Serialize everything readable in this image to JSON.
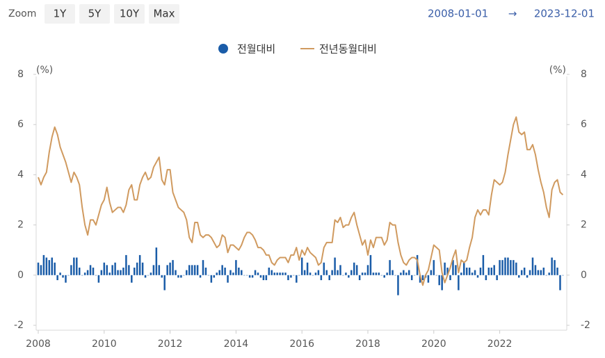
{
  "controls": {
    "zoom_label": "Zoom",
    "buttons": [
      "1Y",
      "5Y",
      "10Y",
      "Max"
    ],
    "range": {
      "from": "2008-01-01",
      "arrow": "→",
      "to": "2023-12-01"
    }
  },
  "chart_data": {
    "type": "bar+line",
    "x": [
      "2008-01",
      "2008-02",
      "2008-03",
      "2008-04",
      "2008-05",
      "2008-06",
      "2008-07",
      "2008-08",
      "2008-09",
      "2008-10",
      "2008-11",
      "2008-12",
      "2009-01",
      "2009-02",
      "2009-03",
      "2009-04",
      "2009-05",
      "2009-06",
      "2009-07",
      "2009-08",
      "2009-09",
      "2009-10",
      "2009-11",
      "2009-12",
      "2010-01",
      "2010-02",
      "2010-03",
      "2010-04",
      "2010-05",
      "2010-06",
      "2010-07",
      "2010-08",
      "2010-09",
      "2010-10",
      "2010-11",
      "2010-12",
      "2011-01",
      "2011-02",
      "2011-03",
      "2011-04",
      "2011-05",
      "2011-06",
      "2011-07",
      "2011-08",
      "2011-09",
      "2011-10",
      "2011-11",
      "2011-12",
      "2012-01",
      "2012-02",
      "2012-03",
      "2012-04",
      "2012-05",
      "2012-06",
      "2012-07",
      "2012-08",
      "2012-09",
      "2012-10",
      "2012-11",
      "2012-12",
      "2013-01",
      "2013-02",
      "2013-03",
      "2013-04",
      "2013-05",
      "2013-06",
      "2013-07",
      "2013-08",
      "2013-09",
      "2013-10",
      "2013-11",
      "2013-12",
      "2014-01",
      "2014-02",
      "2014-03",
      "2014-04",
      "2014-05",
      "2014-06",
      "2014-07",
      "2014-08",
      "2014-09",
      "2014-10",
      "2014-11",
      "2014-12",
      "2015-01",
      "2015-02",
      "2015-03",
      "2015-04",
      "2015-05",
      "2015-06",
      "2015-07",
      "2015-08",
      "2015-09",
      "2015-10",
      "2015-11",
      "2015-12",
      "2016-01",
      "2016-02",
      "2016-03",
      "2016-04",
      "2016-05",
      "2016-06",
      "2016-07",
      "2016-08",
      "2016-09",
      "2016-10",
      "2016-11",
      "2016-12",
      "2017-01",
      "2017-02",
      "2017-03",
      "2017-04",
      "2017-05",
      "2017-06",
      "2017-07",
      "2017-08",
      "2017-09",
      "2017-10",
      "2017-11",
      "2017-12",
      "2018-01",
      "2018-02",
      "2018-03",
      "2018-04",
      "2018-05",
      "2018-06",
      "2018-07",
      "2018-08",
      "2018-09",
      "2018-10",
      "2018-11",
      "2018-12",
      "2019-01",
      "2019-02",
      "2019-03",
      "2019-04",
      "2019-05",
      "2019-06",
      "2019-07",
      "2019-08",
      "2019-09",
      "2019-10",
      "2019-11",
      "2019-12",
      "2020-01",
      "2020-02",
      "2020-03",
      "2020-04",
      "2020-05",
      "2020-06",
      "2020-07",
      "2020-08",
      "2020-09",
      "2020-10",
      "2020-11",
      "2020-12",
      "2021-01",
      "2021-02",
      "2021-03",
      "2021-04",
      "2021-05",
      "2021-06",
      "2021-07",
      "2021-08",
      "2021-09",
      "2021-10",
      "2021-11",
      "2021-12",
      "2022-01",
      "2022-02",
      "2022-03",
      "2022-04",
      "2022-05",
      "2022-06",
      "2022-07",
      "2022-08",
      "2022-09",
      "2022-10",
      "2022-11",
      "2022-12",
      "2023-01",
      "2023-02",
      "2023-03",
      "2023-04",
      "2023-05",
      "2023-06",
      "2023-07",
      "2023-08",
      "2023-09",
      "2023-10",
      "2023-11",
      "2023-12"
    ],
    "xticks": [
      {
        "value": "2008-01",
        "label": "2008"
      },
      {
        "value": "2010-01",
        "label": "2010"
      },
      {
        "value": "2012-01",
        "label": "2012"
      },
      {
        "value": "2014-01",
        "label": "2014"
      },
      {
        "value": "2016-01",
        "label": "2016"
      },
      {
        "value": "2018-01",
        "label": "2018"
      },
      {
        "value": "2020-01",
        "label": "2020"
      },
      {
        "value": "2022-01",
        "label": "2022"
      }
    ],
    "y_unit": "(%)",
    "y2_unit": "(%)",
    "ylim": [
      -2,
      8
    ],
    "yticks": [
      -2,
      0,
      2,
      4,
      6,
      8
    ],
    "y2lim": [
      -2,
      8
    ],
    "y2ticks": [
      -2,
      0,
      2,
      4,
      6,
      8
    ],
    "grid": false,
    "legend": "top",
    "series": [
      {
        "name": "전월대비",
        "type": "bar",
        "color": "#1a5ca8",
        "values": [
          0.5,
          0.4,
          0.8,
          0.7,
          0.6,
          0.7,
          0.5,
          -0.2,
          0.1,
          -0.1,
          -0.3,
          0.0,
          0.4,
          0.7,
          0.7,
          0.3,
          0.0,
          0.1,
          0.2,
          0.4,
          0.3,
          0.0,
          -0.3,
          0.2,
          0.5,
          0.4,
          0.1,
          0.4,
          0.5,
          0.2,
          0.2,
          0.3,
          0.8,
          0.4,
          -0.3,
          0.3,
          0.5,
          0.8,
          0.5,
          -0.1,
          0.0,
          0.1,
          0.4,
          1.1,
          0.4,
          -0.1,
          -0.6,
          0.4,
          0.5,
          0.6,
          0.2,
          -0.1,
          -0.1,
          0.0,
          0.2,
          0.4,
          0.4,
          0.4,
          0.4,
          -0.1,
          0.6,
          0.3,
          0.0,
          -0.3,
          -0.1,
          0.1,
          0.2,
          0.4,
          0.3,
          -0.3,
          0.2,
          0.1,
          0.6,
          0.3,
          0.2,
          0.0,
          0.0,
          -0.1,
          -0.1,
          0.2,
          0.1,
          -0.1,
          -0.2,
          -0.2,
          0.3,
          0.2,
          0.1,
          0.1,
          0.1,
          0.1,
          0.1,
          -0.2,
          -0.1,
          0.0,
          -0.3,
          0.0,
          0.7,
          0.2,
          0.5,
          0.1,
          0.0,
          0.1,
          0.2,
          -0.2,
          0.5,
          0.2,
          -0.2,
          0.2,
          0.7,
          0.2,
          0.4,
          0.0,
          0.1,
          -0.1,
          0.2,
          0.5,
          0.4,
          -0.2,
          0.1,
          0.1,
          0.4,
          0.8,
          0.1,
          0.1,
          0.1,
          0.0,
          -0.1,
          0.1,
          0.6,
          0.2,
          0.0,
          -0.8,
          0.1,
          0.2,
          0.1,
          0.2,
          -0.2,
          0.0,
          0.8,
          -0.3,
          -0.2,
          -0.1,
          -0.3,
          0.2,
          0.6,
          0.0,
          -0.4,
          -0.6,
          0.5,
          0.3,
          -0.2,
          0.6,
          0.4,
          -0.6,
          0.1,
          0.5,
          0.3,
          0.3,
          0.1,
          0.2,
          -0.1,
          0.3,
          0.8,
          -0.2,
          0.3,
          0.3,
          0.4,
          -0.2,
          0.6,
          0.6,
          0.7,
          0.7,
          0.6,
          0.6,
          0.5,
          -0.1,
          0.2,
          0.3,
          -0.1,
          0.2,
          0.7,
          0.4,
          0.2,
          0.2,
          0.3,
          0.0,
          0.1,
          0.7,
          0.6,
          0.3,
          -0.6,
          0.0
        ]
      },
      {
        "name": "전년동월대비",
        "type": "line",
        "axis": "y2",
        "color": "#d09a5f",
        "values": [
          3.9,
          3.6,
          3.9,
          4.1,
          4.9,
          5.5,
          5.9,
          5.6,
          5.1,
          4.8,
          4.5,
          4.1,
          3.7,
          4.1,
          3.9,
          3.6,
          2.7,
          2.0,
          1.6,
          2.2,
          2.2,
          2.0,
          2.4,
          2.8,
          3.0,
          3.5,
          2.9,
          2.5,
          2.6,
          2.7,
          2.7,
          2.5,
          2.8,
          3.4,
          3.6,
          3.0,
          3.0,
          3.6,
          3.9,
          4.1,
          3.8,
          3.9,
          4.3,
          4.5,
          4.7,
          3.8,
          3.6,
          4.2,
          4.2,
          3.3,
          3.0,
          2.7,
          2.6,
          2.5,
          2.2,
          1.5,
          1.3,
          2.1,
          2.1,
          1.6,
          1.5,
          1.6,
          1.6,
          1.5,
          1.3,
          1.1,
          1.2,
          1.6,
          1.5,
          0.9,
          1.2,
          1.2,
          1.1,
          1.0,
          1.2,
          1.5,
          1.7,
          1.7,
          1.6,
          1.4,
          1.1,
          1.1,
          1.0,
          0.8,
          0.8,
          0.5,
          0.4,
          0.6,
          0.7,
          0.7,
          0.7,
          0.5,
          0.8,
          0.8,
          1.1,
          0.6,
          1.0,
          0.8,
          1.1,
          0.9,
          0.8,
          0.7,
          0.4,
          0.5,
          1.1,
          1.3,
          1.3,
          1.3,
          2.2,
          2.1,
          2.3,
          1.9,
          2.0,
          2.0,
          2.3,
          2.5,
          2.0,
          1.6,
          1.2,
          1.4,
          0.8,
          1.4,
          1.1,
          1.5,
          1.5,
          1.5,
          1.2,
          1.4,
          2.1,
          2.0,
          2.0,
          1.3,
          0.8,
          0.5,
          0.4,
          0.6,
          0.7,
          0.7,
          0.6,
          0.0,
          -0.4,
          0.0,
          0.2,
          0.7,
          1.2,
          1.1,
          1.0,
          0.1,
          -0.3,
          0.0,
          0.3,
          0.7,
          1.0,
          0.1,
          0.6,
          0.5,
          0.6,
          1.1,
          1.5,
          2.3,
          2.6,
          2.4,
          2.6,
          2.6,
          2.4,
          3.2,
          3.8,
          3.7,
          3.6,
          3.7,
          4.1,
          4.8,
          5.4,
          6.0,
          6.3,
          5.7,
          5.6,
          5.7,
          5.0,
          5.0,
          5.2,
          4.8,
          4.2,
          3.7,
          3.3,
          2.7,
          2.3,
          3.4,
          3.7,
          3.8,
          3.3,
          3.2
        ]
      }
    ]
  }
}
